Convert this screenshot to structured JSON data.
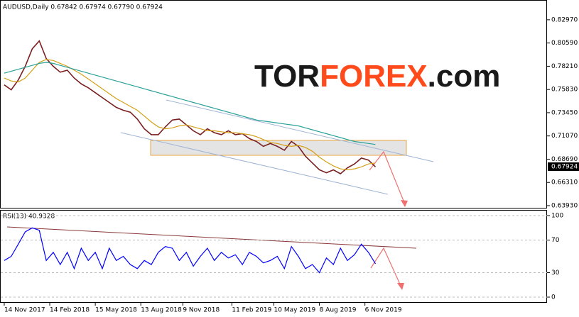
{
  "chart_data": [
    {
      "type": "line",
      "title": "AUDUSD,Daily  0.67842 0.67974 0.67790 0.67924",
      "watermark": "TORFOREX.com",
      "last_price": 0.67924,
      "x": [
        0,
        2,
        4,
        6,
        8,
        10,
        12,
        14,
        16,
        18,
        20,
        22,
        24,
        26,
        28,
        30,
        32,
        34,
        36,
        38,
        40,
        42,
        44,
        46,
        48,
        50,
        52,
        54,
        56,
        58,
        60,
        62,
        64,
        66,
        68,
        70,
        72,
        74,
        76,
        78,
        80,
        82,
        84,
        86,
        88,
        90,
        92,
        94,
        96,
        98,
        100,
        102,
        104,
        106
      ],
      "series": [
        {
          "color": "#7a1f1f",
          "values": [
            0.763,
            0.758,
            0.768,
            0.782,
            0.8,
            0.808,
            0.79,
            0.782,
            0.776,
            0.778,
            0.77,
            0.764,
            0.76,
            0.755,
            0.75,
            0.745,
            0.74,
            0.737,
            0.735,
            0.728,
            0.718,
            0.712,
            0.712,
            0.72,
            0.727,
            0.728,
            0.722,
            0.716,
            0.712,
            0.718,
            0.714,
            0.712,
            0.716,
            0.712,
            0.713,
            0.708,
            0.705,
            0.7,
            0.703,
            0.7,
            0.696,
            0.705,
            0.7,
            0.69,
            0.683,
            0.676,
            0.673,
            0.676,
            0.672,
            0.678,
            0.682,
            0.688,
            0.686,
            0.679
          ]
        },
        {
          "color": "#d4a017",
          "values": [
            0.77,
            0.767,
            0.766,
            0.77,
            0.778,
            0.786,
            0.789,
            0.788,
            0.785,
            0.782,
            0.778,
            0.774,
            0.769,
            0.764,
            0.759,
            0.754,
            0.749,
            0.745,
            0.741,
            0.737,
            0.731,
            0.725,
            0.72,
            0.718,
            0.719,
            0.721,
            0.722,
            0.72,
            0.718,
            0.716,
            0.716,
            0.715,
            0.714,
            0.714,
            0.713,
            0.712,
            0.71,
            0.707,
            0.704,
            0.703,
            0.701,
            0.7,
            0.701,
            0.699,
            0.695,
            0.689,
            0.684,
            0.68,
            0.677,
            0.676,
            0.677,
            0.679,
            0.682,
            0.683
          ]
        },
        {
          "color": "#2aa198",
          "values": [
            0.775,
            0.777,
            0.779,
            0.781,
            0.783,
            0.785,
            0.786,
            0.785,
            0.783,
            0.781,
            0.779,
            0.777,
            0.775,
            0.773,
            0.771,
            0.769,
            0.767,
            0.765,
            0.763,
            0.761,
            0.759,
            0.757,
            0.755,
            0.753,
            0.751,
            0.749,
            0.747,
            0.745,
            0.743,
            0.741,
            0.739,
            0.737,
            0.735,
            0.733,
            0.731,
            0.729,
            0.727,
            0.726,
            0.725,
            0.724,
            0.723,
            0.722,
            0.721,
            0.719,
            0.717,
            0.715,
            0.713,
            0.711,
            0.709,
            0.707,
            0.705,
            0.704,
            0.703,
            0.702
          ]
        }
      ],
      "xlim": [
        -0.6,
        155
      ],
      "ylim": [
        0.6371,
        0.8485
      ],
      "yticks": [
        {
          "value": 0.8297,
          "label": "0.82970"
        },
        {
          "value": 0.8059,
          "label": "0.80590"
        },
        {
          "value": 0.7821,
          "label": "0.78210"
        },
        {
          "value": 0.7583,
          "label": "0.75830"
        },
        {
          "value": 0.7345,
          "label": "0.73450"
        },
        {
          "value": 0.7107,
          "label": "0.71070"
        },
        {
          "value": 0.6869,
          "label": "0.68690"
        },
        {
          "value": 0.6631,
          "label": "0.66310"
        },
        {
          "value": 0.6393,
          "label": "0.63930"
        }
      ],
      "xticks": [
        {
          "value": 0,
          "label": "14 Nov 2017"
        },
        {
          "value": 13,
          "label": "14 Feb 2018"
        },
        {
          "value": 26,
          "label": "15 May 2018"
        },
        {
          "value": 39,
          "label": "13 Aug 2018"
        },
        {
          "value": 51,
          "label": "9 Nov 2018"
        },
        {
          "value": 65,
          "label": "11 Feb 2019"
        },
        {
          "value": 77,
          "label": "10 May 2019"
        },
        {
          "value": 90,
          "label": "8 Aug 2019"
        },
        {
          "value": 103,
          "label": "6 Nov 2019"
        }
      ]
    },
    {
      "type": "line",
      "title": "RSI(13) 40.9328",
      "x": [
        0,
        2,
        4,
        6,
        8,
        10,
        12,
        14,
        16,
        18,
        20,
        22,
        24,
        26,
        28,
        30,
        32,
        34,
        36,
        38,
        40,
        42,
        44,
        46,
        48,
        50,
        52,
        54,
        56,
        58,
        60,
        62,
        64,
        66,
        68,
        70,
        72,
        74,
        76,
        78,
        80,
        82,
        84,
        86,
        88,
        90,
        92,
        94,
        96,
        98,
        100,
        102,
        104,
        106
      ],
      "series": [
        {
          "color": "#0000ff",
          "values": [
            45,
            50,
            65,
            80,
            85,
            82,
            45,
            55,
            40,
            55,
            35,
            60,
            45,
            55,
            35,
            60,
            45,
            50,
            40,
            35,
            45,
            40,
            55,
            62,
            60,
            45,
            55,
            38,
            50,
            60,
            45,
            55,
            48,
            52,
            40,
            55,
            50,
            42,
            45,
            50,
            35,
            62,
            50,
            35,
            40,
            30,
            48,
            40,
            60,
            45,
            52,
            65,
            55,
            41
          ]
        }
      ],
      "xlim": [
        -0.6,
        155
      ],
      "ylim": [
        0,
        100
      ],
      "yticks": [
        100,
        70,
        30,
        0
      ]
    }
  ]
}
